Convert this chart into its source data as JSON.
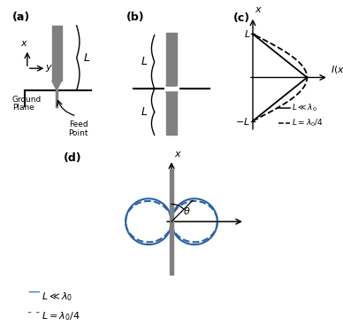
{
  "panel_a_label": "(a)",
  "panel_b_label": "(b)",
  "panel_c_label": "(c)",
  "panel_d_label": "(d)",
  "antenna_color": "#808080",
  "line_color": "#000000",
  "blue_color": "#2a62a8",
  "background": "#ffffff",
  "legend_solid": "L \\ll \\lambda_0",
  "legend_dashed": "L = \\lambda_0/4"
}
